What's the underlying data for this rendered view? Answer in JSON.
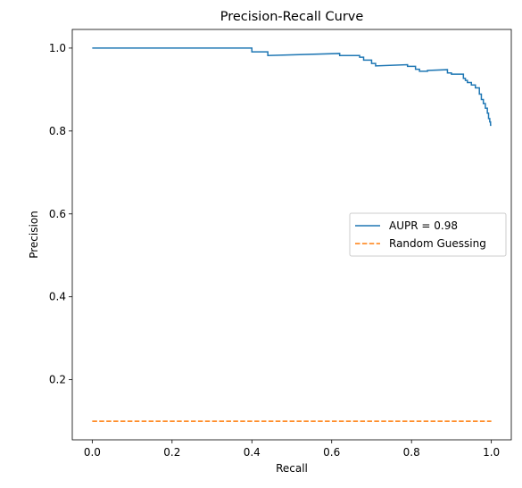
{
  "chart_data": {
    "type": "line",
    "title": "Precision-Recall Curve",
    "xlabel": "Recall",
    "ylabel": "Precision",
    "xlim": [
      -0.05,
      1.05
    ],
    "ylim": [
      0.055,
      1.045
    ],
    "xticks": [
      0.0,
      0.2,
      0.4,
      0.6,
      0.8,
      1.0
    ],
    "xtick_labels": [
      "0.0",
      "0.2",
      "0.4",
      "0.6",
      "0.8",
      "1.0"
    ],
    "yticks": [
      0.2,
      0.4,
      0.6,
      0.8,
      1.0
    ],
    "ytick_labels": [
      "0.2",
      "0.4",
      "0.6",
      "0.8",
      "1.0"
    ],
    "grid": false,
    "legend_position": "center-right",
    "series": [
      {
        "name": "AUPR = 0.98",
        "color": "#1f77b4",
        "style": "solid",
        "step": true,
        "x": [
          0.0,
          0.4,
          0.4,
          0.44,
          0.44,
          0.62,
          0.62,
          0.67,
          0.67,
          0.68,
          0.68,
          0.7,
          0.7,
          0.71,
          0.71,
          0.79,
          0.79,
          0.81,
          0.81,
          0.82,
          0.82,
          0.84,
          0.84,
          0.89,
          0.89,
          0.9,
          0.9,
          0.93,
          0.93,
          0.935,
          0.935,
          0.94,
          0.94,
          0.95,
          0.95,
          0.96,
          0.96,
          0.97,
          0.97,
          0.975,
          0.975,
          0.98,
          0.98,
          0.985,
          0.985,
          0.99,
          0.99,
          0.993,
          0.993,
          0.996,
          0.996,
          0.998,
          0.998,
          1.0
        ],
        "y": [
          1.0,
          1.0,
          0.991,
          0.991,
          0.982,
          0.987,
          0.982,
          0.982,
          0.978,
          0.978,
          0.971,
          0.971,
          0.963,
          0.963,
          0.957,
          0.96,
          0.956,
          0.956,
          0.949,
          0.949,
          0.944,
          0.944,
          0.946,
          0.948,
          0.94,
          0.94,
          0.937,
          0.937,
          0.927,
          0.927,
          0.922,
          0.922,
          0.917,
          0.917,
          0.911,
          0.911,
          0.904,
          0.904,
          0.889,
          0.889,
          0.876,
          0.876,
          0.866,
          0.866,
          0.855,
          0.855,
          0.843,
          0.843,
          0.83,
          0.83,
          0.822,
          0.822,
          0.814,
          0.814
        ]
      },
      {
        "name": "Random Guessing",
        "color": "#ff7f0e",
        "style": "dashed",
        "x": [
          0.0,
          1.0
        ],
        "y": [
          0.1,
          0.1
        ]
      }
    ]
  }
}
